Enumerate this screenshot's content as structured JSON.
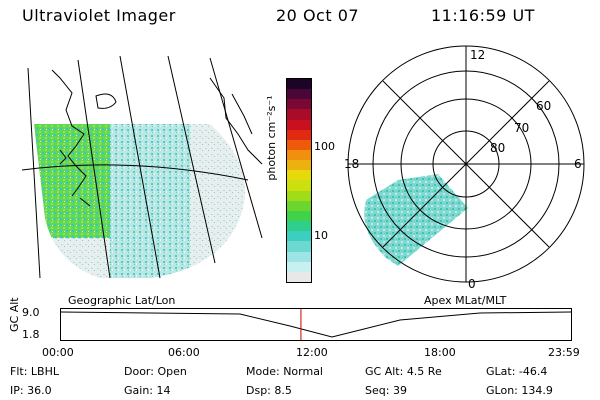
{
  "header": {
    "instrument": "Ultraviolet Imager",
    "date": "20 Oct 07",
    "time": "11:16:59 UT"
  },
  "colorbar": {
    "unit_label": "photon cm⁻²s⁻¹",
    "ticks": [
      "100",
      "10"
    ],
    "colors": [
      "#e8e8e8",
      "#c7f0f0",
      "#9fe4e4",
      "#6cd8d0",
      "#3ccfc0",
      "#2ecf8a",
      "#3fd24a",
      "#6cd62e",
      "#a0dc18",
      "#cce010",
      "#e6d90c",
      "#ecb010",
      "#f0900e",
      "#ee5a0c",
      "#e02a12",
      "#c9101e",
      "#a80c28",
      "#7a0834",
      "#4a0638",
      "#1c0426"
    ]
  },
  "geographic_map": {
    "label": "Geographic Lat/Lon"
  },
  "polar_plot": {
    "label": "Apex MLat/MLT",
    "mlt_labels": {
      "top": "12",
      "left": "18",
      "right": "6",
      "bottom": "0"
    },
    "mlat_labels": [
      "60",
      "70",
      "80"
    ]
  },
  "altitude_strip": {
    "y_label": "GC Alt",
    "y_ticks": [
      "9.0",
      "1.8"
    ],
    "x_ticks": [
      "00:00",
      "06:00",
      "12:00",
      "18:00",
      "23:59"
    ],
    "current_time_marker": "11:16:59",
    "marker_color": "#cc0000"
  },
  "status": {
    "row1": [
      {
        "key": "Flt:",
        "value": "LBHL"
      },
      {
        "key": "Door:",
        "value": "Open"
      },
      {
        "key": "Mode:",
        "value": "Normal"
      },
      {
        "key": "GC Alt:",
        "value": "4.5 Re"
      },
      {
        "key": "GLat:",
        "value": "-46.4"
      }
    ],
    "row2": [
      {
        "key": "IP:",
        "value": "36.0"
      },
      {
        "key": "Gain:",
        "value": "14"
      },
      {
        "key": "Dsp:",
        "value": "8.5"
      },
      {
        "key": "Seq:",
        "value": "39"
      },
      {
        "key": "GLon:",
        "value": "134.9"
      }
    ]
  }
}
